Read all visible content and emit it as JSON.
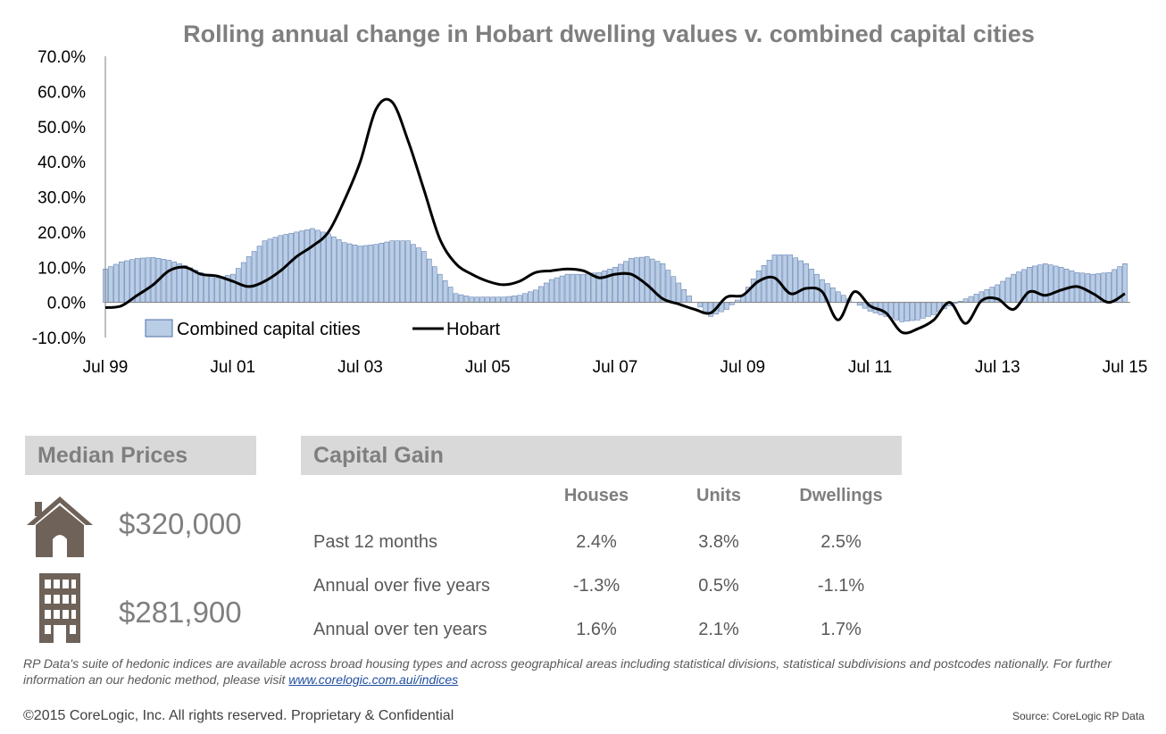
{
  "chart_data": {
    "type": "bar",
    "title": "Rolling annual change in Hobart dwelling values v. combined capital cities",
    "x_tick_labels": [
      "Jul 99",
      "Jul 01",
      "Jul 03",
      "Jul 05",
      "Jul 07",
      "Jul 09",
      "Jul 11",
      "Jul 13",
      "Jul 15"
    ],
    "y_tick_labels": [
      "-10.0%",
      "0.0%",
      "10.0%",
      "20.0%",
      "30.0%",
      "40.0%",
      "50.0%",
      "60.0%",
      "70.0%"
    ],
    "ylim": [
      -10,
      70
    ],
    "xlim": [
      "1999-07",
      "2015-07"
    ],
    "legend": {
      "position": "bottom-left",
      "entries": [
        "Combined capital cities",
        "Hobart"
      ]
    },
    "series": [
      {
        "name": "Combined capital cities",
        "type": "bar",
        "color": "#b9cde5",
        "points": [
          [
            "1999-07",
            9.5
          ],
          [
            "1999-10",
            11.5
          ],
          [
            "2000-01",
            12.5
          ],
          [
            "2000-04",
            12.8
          ],
          [
            "2000-07",
            12.0
          ],
          [
            "2000-10",
            10.5
          ],
          [
            "2001-01",
            8.5
          ],
          [
            "2001-04",
            7.0
          ],
          [
            "2001-07",
            8.0
          ],
          [
            "2001-10",
            13.0
          ],
          [
            "2002-01",
            17.5
          ],
          [
            "2002-04",
            19.0
          ],
          [
            "2002-07",
            20.0
          ],
          [
            "2002-10",
            21.0
          ],
          [
            "2003-01",
            19.5
          ],
          [
            "2003-04",
            17.0
          ],
          [
            "2003-07",
            16.0
          ],
          [
            "2003-10",
            16.5
          ],
          [
            "2004-01",
            17.5
          ],
          [
            "2004-04",
            17.5
          ],
          [
            "2004-07",
            14.5
          ],
          [
            "2004-10",
            8.0
          ],
          [
            "2005-01",
            2.5
          ],
          [
            "2005-04",
            1.5
          ],
          [
            "2005-07",
            1.5
          ],
          [
            "2005-10",
            1.5
          ],
          [
            "2006-01",
            2.0
          ],
          [
            "2006-04",
            3.5
          ],
          [
            "2006-07",
            6.5
          ],
          [
            "2006-10",
            8.0
          ],
          [
            "2007-01",
            8.0
          ],
          [
            "2007-04",
            8.5
          ],
          [
            "2007-07",
            10.0
          ],
          [
            "2007-10",
            12.5
          ],
          [
            "2008-01",
            13.0
          ],
          [
            "2008-04",
            11.0
          ],
          [
            "2008-07",
            5.5
          ],
          [
            "2008-10",
            0.0
          ],
          [
            "2009-01",
            -4.0
          ],
          [
            "2009-04",
            -2.0
          ],
          [
            "2009-07",
            2.0
          ],
          [
            "2009-10",
            9.0
          ],
          [
            "2010-01",
            13.5
          ],
          [
            "2010-04",
            13.5
          ],
          [
            "2010-07",
            11.0
          ],
          [
            "2010-10",
            6.5
          ],
          [
            "2011-01",
            3.0
          ],
          [
            "2011-04",
            0.0
          ],
          [
            "2011-07",
            -2.5
          ],
          [
            "2011-10",
            -4.0
          ],
          [
            "2012-01",
            -5.5
          ],
          [
            "2012-04",
            -5.0
          ],
          [
            "2012-07",
            -3.5
          ],
          [
            "2012-10",
            -1.0
          ],
          [
            "2013-01",
            1.0
          ],
          [
            "2013-04",
            3.0
          ],
          [
            "2013-07",
            5.0
          ],
          [
            "2013-10",
            8.0
          ],
          [
            "2014-01",
            10.0
          ],
          [
            "2014-04",
            11.0
          ],
          [
            "2014-07",
            10.0
          ],
          [
            "2014-10",
            8.5
          ],
          [
            "2015-01",
            8.0
          ],
          [
            "2015-04",
            8.5
          ],
          [
            "2015-07",
            11.0
          ]
        ]
      },
      {
        "name": "Hobart",
        "type": "line",
        "color": "#000000",
        "points": [
          [
            "1999-07",
            -1.5
          ],
          [
            "1999-10",
            -1.0
          ],
          [
            "2000-01",
            2.0
          ],
          [
            "2000-04",
            5.0
          ],
          [
            "2000-07",
            9.0
          ],
          [
            "2000-10",
            10.0
          ],
          [
            "2001-01",
            8.0
          ],
          [
            "2001-04",
            7.5
          ],
          [
            "2001-07",
            6.0
          ],
          [
            "2001-10",
            4.5
          ],
          [
            "2002-01",
            6.0
          ],
          [
            "2002-04",
            9.0
          ],
          [
            "2002-07",
            13.0
          ],
          [
            "2002-10",
            16.0
          ],
          [
            "2003-01",
            20.0
          ],
          [
            "2003-04",
            29.0
          ],
          [
            "2003-07",
            40.0
          ],
          [
            "2003-10",
            55.0
          ],
          [
            "2004-01",
            57.0
          ],
          [
            "2004-04",
            46.0
          ],
          [
            "2004-07",
            32.0
          ],
          [
            "2004-10",
            18.0
          ],
          [
            "2005-01",
            11.0
          ],
          [
            "2005-04",
            8.0
          ],
          [
            "2005-07",
            6.0
          ],
          [
            "2005-10",
            5.0
          ],
          [
            "2006-01",
            6.0
          ],
          [
            "2006-04",
            8.5
          ],
          [
            "2006-07",
            9.0
          ],
          [
            "2006-10",
            9.5
          ],
          [
            "2007-01",
            9.0
          ],
          [
            "2007-04",
            7.0
          ],
          [
            "2007-07",
            8.0
          ],
          [
            "2007-10",
            8.0
          ],
          [
            "2008-01",
            5.0
          ],
          [
            "2008-04",
            1.0
          ],
          [
            "2008-07",
            -0.5
          ],
          [
            "2008-10",
            -2.0
          ],
          [
            "2009-01",
            -3.0
          ],
          [
            "2009-04",
            1.5
          ],
          [
            "2009-07",
            2.0
          ],
          [
            "2009-10",
            6.0
          ],
          [
            "2010-01",
            7.0
          ],
          [
            "2010-04",
            2.5
          ],
          [
            "2010-07",
            4.0
          ],
          [
            "2010-10",
            3.0
          ],
          [
            "2011-01",
            -5.0
          ],
          [
            "2011-04",
            3.0
          ],
          [
            "2011-07",
            -1.0
          ],
          [
            "2011-10",
            -3.0
          ],
          [
            "2012-01",
            -8.5
          ],
          [
            "2012-04",
            -7.5
          ],
          [
            "2012-07",
            -5.0
          ],
          [
            "2012-10",
            0.0
          ],
          [
            "2013-01",
            -6.0
          ],
          [
            "2013-04",
            0.5
          ],
          [
            "2013-07",
            1.0
          ],
          [
            "2013-10",
            -2.0
          ],
          [
            "2014-01",
            3.0
          ],
          [
            "2014-04",
            2.0
          ],
          [
            "2014-07",
            3.5
          ],
          [
            "2014-10",
            4.5
          ],
          [
            "2015-01",
            2.5
          ],
          [
            "2015-04",
            0.0
          ],
          [
            "2015-07",
            2.5
          ]
        ]
      }
    ]
  },
  "median_prices": {
    "title": "Median Prices",
    "house_price": "$320,000",
    "unit_price": "$281,900"
  },
  "capital_gain": {
    "title": "Capital Gain",
    "columns": [
      "Houses",
      "Units",
      "Dwellings"
    ],
    "rows": [
      {
        "label": "Past 12 months",
        "values": [
          "2.4%",
          "3.8%",
          "2.5%"
        ]
      },
      {
        "label": "Annual over five years",
        "values": [
          "-1.3%",
          "0.5%",
          "-1.1%"
        ]
      },
      {
        "label": "Annual over ten years",
        "values": [
          "1.6%",
          "2.1%",
          "1.7%"
        ]
      }
    ]
  },
  "footer": {
    "disclaimer": "RP Data's suite of hedonic indices are available across broad housing types and across geographical areas including statistical divisions, statistical subdivisions and postcodes nationally.  For further information an our hedonic method, please visit",
    "link_text": "www.corelogic.com.aui/indices",
    "copyright": "©2015 CoreLogic, Inc. All rights reserved. Proprietary & Confidential",
    "source": "Source: CoreLogic RP Data"
  },
  "colors": {
    "bar_fill": "#b9cde5",
    "bar_stroke": "#4f6fa8",
    "panel": "#d9d9d9",
    "panel_text": "#7f7f7f",
    "icon": "#6e6259"
  },
  "icons": [
    "house-icon",
    "apartment-building-icon"
  ]
}
